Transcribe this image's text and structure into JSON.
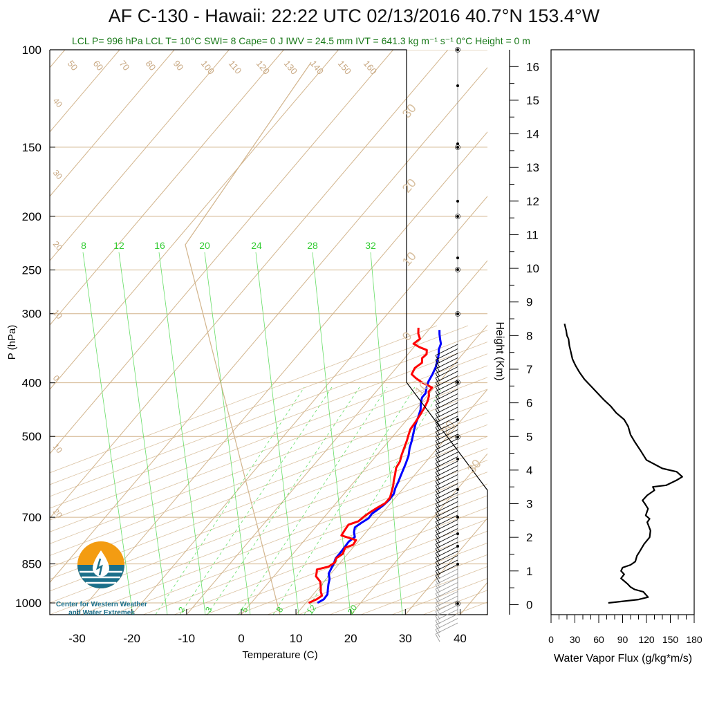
{
  "title": "AF C-130 - Hawaii: 22:22 UTC 02/13/2016  40.7°N 153.4°W",
  "subtitle": "LCL P= 996 hPa  LCL T= 10°C  SWI= 8  Cape= 0 J  IWV = 24.5 mm  IVT = 641.3 kg m⁻¹ s⁻¹  0°C Height = 0 m",
  "logo_text": [
    "Center for Western Weather",
    "and Water Extremes"
  ],
  "colors": {
    "temperature": "#ff0000",
    "dewpoint": "#0000ff",
    "isotherm": "#d2b48c",
    "mixing_ratio": "#66dd66",
    "green_label": "#33cc33",
    "flux": "#000000"
  },
  "chart_data": [
    {
      "type": "line",
      "subtype": "skew-t log-p sounding",
      "xlabel": "Temperature (C)",
      "ylabel": "P (hPa)",
      "xlim": [
        -35,
        45
      ],
      "ylim": [
        1050,
        100
      ],
      "yscale": "log",
      "x_ticks": [
        -30,
        -20,
        -10,
        0,
        10,
        20,
        30,
        40
      ],
      "y_ticks": [
        100,
        150,
        200,
        250,
        300,
        400,
        500,
        700,
        850,
        1000
      ],
      "isotherm_labels": [
        50,
        60,
        70,
        80,
        90,
        100,
        110,
        120,
        130,
        140,
        150,
        160
      ],
      "left_labels": [
        40,
        30,
        20,
        10,
        0,
        10,
        20
      ],
      "theta_labels": [
        30,
        20,
        10,
        0,
        10,
        20,
        30
      ],
      "mixing_ratio_labels_top": [
        8,
        12,
        16,
        20,
        24,
        28,
        32
      ],
      "mixing_ratio_labels_bottom": [
        2,
        3,
        5,
        8,
        12,
        20
      ],
      "series": [
        {
          "name": "Temperature",
          "points": [
            [
              10.5,
              1000
            ],
            [
              11.4,
              985
            ],
            [
              11.8,
              970
            ],
            [
              11.0,
              955
            ],
            [
              10.2,
              935
            ],
            [
              9.3,
              915
            ],
            [
              7.7,
              895
            ],
            [
              7.2,
              880
            ],
            [
              6.8,
              870
            ],
            [
              8.5,
              860
            ],
            [
              9.0,
              845
            ],
            [
              8.6,
              830
            ],
            [
              9.1,
              815
            ],
            [
              8.6,
              795
            ],
            [
              9.6,
              785
            ],
            [
              9.4,
              770
            ],
            [
              6.0,
              755
            ],
            [
              5.8,
              740
            ],
            [
              5.6,
              722
            ],
            [
              6.9,
              712
            ],
            [
              7.2,
              698
            ],
            [
              7.7,
              684
            ],
            [
              8.3,
              672
            ],
            [
              9.0,
              660
            ],
            [
              9.0,
              645
            ],
            [
              8.4,
              630
            ],
            [
              7.8,
              615
            ],
            [
              7.0,
              600
            ],
            [
              6.3,
              585
            ],
            [
              5.5,
              570
            ],
            [
              5.2,
              555
            ],
            [
              4.5,
              540
            ],
            [
              3.9,
              525
            ],
            [
              3.2,
              508
            ],
            [
              2.7,
              498
            ],
            [
              2.1,
              485
            ],
            [
              1.9,
              470
            ],
            [
              1.6,
              455
            ],
            [
              1.3,
              443
            ],
            [
              0.9,
              432
            ],
            [
              0.3,
              422
            ],
            [
              -0.4,
              415
            ],
            [
              -0.4,
              408
            ],
            [
              -1.9,
              403
            ],
            [
              -3.4,
              398
            ],
            [
              -4.9,
              392
            ],
            [
              -6.2,
              386
            ],
            [
              -6.6,
              376
            ],
            [
              -6.1,
              368
            ],
            [
              -6.8,
              361
            ],
            [
              -6.6,
              355
            ],
            [
              -7.2,
              349
            ],
            [
              -8.9,
              345
            ],
            [
              -10.6,
              340
            ],
            [
              -10.2,
              333
            ],
            [
              -11.3,
              326
            ],
            [
              -12.2,
              318
            ]
          ]
        },
        {
          "name": "Dewpoint",
          "points": [
            [
              12.1,
              1000
            ],
            [
              12.7,
              985
            ],
            [
              12.6,
              965
            ],
            [
              11.9,
              945
            ],
            [
              11.2,
              925
            ],
            [
              10.6,
              905
            ],
            [
              9.6,
              885
            ],
            [
              9.3,
              868
            ],
            [
              9.0,
              850
            ],
            [
              8.5,
              830
            ],
            [
              8.5,
              812
            ],
            [
              8.4,
              793
            ],
            [
              8.3,
              775
            ],
            [
              8.7,
              760
            ],
            [
              7.8,
              745
            ],
            [
              7.2,
              730
            ],
            [
              7.7,
              716
            ],
            [
              8.3,
              703
            ],
            [
              8.2,
              690
            ],
            [
              8.6,
              678
            ],
            [
              9.0,
              665
            ],
            [
              9.2,
              650
            ],
            [
              9.1,
              635
            ],
            [
              8.5,
              620
            ],
            [
              8.1,
              605
            ],
            [
              7.6,
              590
            ],
            [
              7.1,
              575
            ],
            [
              6.6,
              560
            ],
            [
              5.9,
              542
            ],
            [
              4.9,
              525
            ],
            [
              4.1,
              508
            ],
            [
              3.2,
              492
            ],
            [
              2.3,
              476
            ],
            [
              1.6,
              460
            ],
            [
              0.9,
              447
            ],
            [
              0.1,
              437
            ],
            [
              -0.4,
              430
            ],
            [
              -0.7,
              425
            ],
            [
              -0.7,
              418
            ],
            [
              -1.4,
              408
            ],
            [
              -2.0,
              398
            ],
            [
              -2.4,
              386
            ],
            [
              -2.9,
              375
            ],
            [
              -3.6,
              365
            ],
            [
              -4.3,
              356
            ],
            [
              -5.1,
              348
            ],
            [
              -5.6,
              340
            ],
            [
              -6.4,
              334
            ],
            [
              -7.3,
              327
            ],
            [
              -8.0,
              321
            ]
          ]
        }
      ]
    },
    {
      "type": "line",
      "xlabel": "Water Vapor Flux (g/kg*m/s)",
      "ylabel": "Height (Km)",
      "xlim": [
        0,
        180
      ],
      "ylim": [
        -0.3,
        16.5
      ],
      "x_ticks": [
        0,
        30,
        60,
        90,
        120,
        150,
        180
      ],
      "y_ticks": [
        0,
        1,
        2,
        3,
        4,
        5,
        6,
        7,
        8,
        9,
        10,
        11,
        12,
        13,
        14,
        15,
        16
      ],
      "series": [
        {
          "name": "Water Vapor Flux",
          "points": [
            [
              72,
              0.05
            ],
            [
              110,
              0.15
            ],
            [
              122,
              0.22
            ],
            [
              116,
              0.38
            ],
            [
              105,
              0.45
            ],
            [
              100,
              0.52
            ],
            [
              96,
              0.62
            ],
            [
              92,
              0.7
            ],
            [
              88,
              0.78
            ],
            [
              92,
              0.9
            ],
            [
              88,
              1.0
            ],
            [
              90,
              1.1
            ],
            [
              100,
              1.18
            ],
            [
              106,
              1.28
            ],
            [
              108,
              1.45
            ],
            [
              112,
              1.6
            ],
            [
              117,
              1.8
            ],
            [
              124,
              2.0
            ],
            [
              125,
              2.2
            ],
            [
              121,
              2.45
            ],
            [
              124,
              2.55
            ],
            [
              119,
              2.65
            ],
            [
              122,
              2.85
            ],
            [
              118,
              3.0
            ],
            [
              115,
              3.1
            ],
            [
              121,
              3.25
            ],
            [
              130,
              3.4
            ],
            [
              128,
              3.5
            ],
            [
              145,
              3.55
            ],
            [
              158,
              3.7
            ],
            [
              165,
              3.8
            ],
            [
              158,
              3.95
            ],
            [
              140,
              4.05
            ],
            [
              132,
              4.15
            ],
            [
              120,
              4.3
            ],
            [
              112,
              4.6
            ],
            [
              105,
              4.85
            ],
            [
              100,
              5.05
            ],
            [
              97,
              5.3
            ],
            [
              92,
              5.5
            ],
            [
              82,
              5.7
            ],
            [
              75,
              5.9
            ],
            [
              66,
              6.1
            ],
            [
              58,
              6.3
            ],
            [
              50,
              6.5
            ],
            [
              42,
              6.7
            ],
            [
              36,
              6.9
            ],
            [
              31,
              7.1
            ],
            [
              27,
              7.3
            ],
            [
              25,
              7.5
            ],
            [
              23,
              7.7
            ],
            [
              22,
              7.9
            ],
            [
              20,
              8.0
            ],
            [
              19,
              8.15
            ],
            [
              17,
              8.35
            ]
          ]
        }
      ]
    }
  ]
}
